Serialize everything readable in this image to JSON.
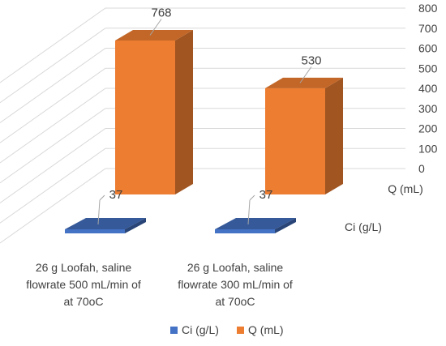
{
  "chart_data": {
    "type": "bar",
    "style": "3d-column",
    "categories": [
      [
        "26 g Loofah,  saline",
        "flowrate 500 mL/min of",
        "at 70oC"
      ],
      [
        "26 g Loofah,  saline",
        "flowrate 300 mL/min of",
        "at 70oC"
      ]
    ],
    "series": [
      {
        "name": "Ci (g/L)",
        "values": [
          37,
          37
        ],
        "color": "#4472C4"
      },
      {
        "name": "Q (mL)",
        "values": [
          768,
          530
        ],
        "color": "#ED7D31"
      }
    ],
    "yticks": [
      "0",
      "100",
      "200",
      "300",
      "400",
      "500",
      "600",
      "700",
      "800"
    ],
    "ylim": [
      0,
      800
    ],
    "data_labels": true,
    "grid": true,
    "legend_position": "bottom"
  }
}
